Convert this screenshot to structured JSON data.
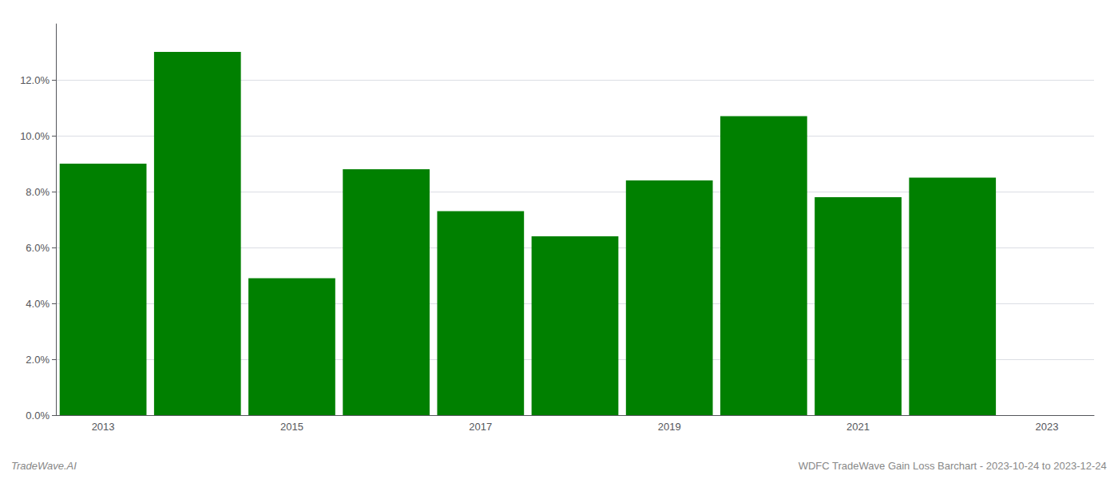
{
  "chart_data": {
    "type": "bar",
    "categories": [
      "2013",
      null,
      "2015",
      null,
      "2017",
      null,
      "2019",
      null,
      "2021",
      null,
      "2023"
    ],
    "values": [
      0.09,
      0.13,
      0.049,
      0.088,
      0.073,
      0.064,
      0.084,
      0.107,
      0.078,
      0.085,
      null
    ],
    "color": "#008000",
    "ylim": [
      0,
      0.14
    ],
    "yticks": [
      {
        "value": 0.0,
        "label": "0.0%"
      },
      {
        "value": 0.02,
        "label": "2.0%"
      },
      {
        "value": 0.04,
        "label": "4.0%"
      },
      {
        "value": 0.06,
        "label": "6.0%"
      },
      {
        "value": 0.08,
        "label": "8.0%"
      },
      {
        "value": 0.1,
        "label": "10.0%"
      },
      {
        "value": 0.12,
        "label": "12.0%"
      }
    ],
    "grid": true,
    "annotations": [
      "TradeWave.AI",
      "WDFC TradeWave Gain Loss Barchart - 2023-10-24 to 2023-12-24"
    ]
  }
}
